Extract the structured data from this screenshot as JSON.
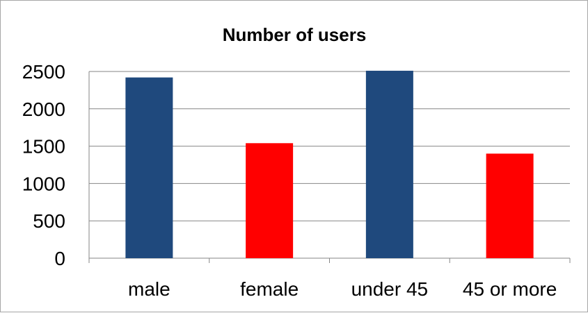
{
  "chart_data": {
    "type": "bar",
    "title": "Number of users",
    "xlabel": "",
    "ylabel": "",
    "categories": [
      "male",
      "female",
      "under 45",
      "45 or more"
    ],
    "values": [
      2420,
      1540,
      2510,
      1400
    ],
    "colors": [
      "#1f497d",
      "#ff0000",
      "#1f497d",
      "#ff0000"
    ],
    "ylim": [
      0,
      2500
    ],
    "yticks": [
      0,
      500,
      1000,
      1500,
      2000,
      2500
    ],
    "ytick_labels": [
      "0",
      "500",
      "1000",
      "1500",
      "2000",
      "2500"
    ],
    "grid": true,
    "legend": "none"
  }
}
